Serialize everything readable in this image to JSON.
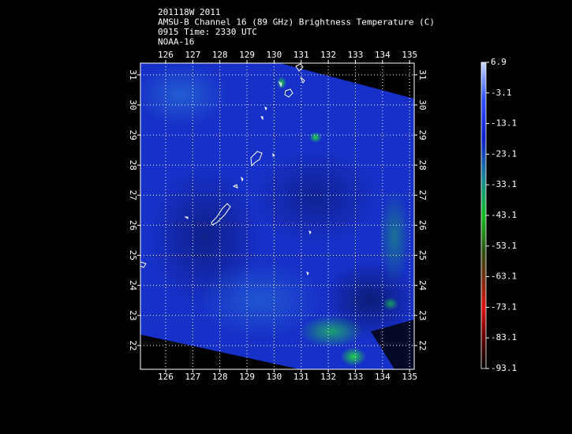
{
  "header": {
    "lines": [
      "201118W 2011",
      "AMSU-B Channel 16 (89 GHz) Brightness Temperature (C)",
      "0915 Time: 2330 UTC",
      "NOAA-16"
    ]
  },
  "map": {
    "lonlim": [
      125.07,
      135.17
    ],
    "latlim": [
      21.21,
      31.39
    ],
    "lon_ticks": [
      126,
      127,
      128,
      129,
      130,
      131,
      132,
      133,
      134,
      135
    ],
    "lat_ticks": [
      22,
      23,
      24,
      25,
      26,
      27,
      28,
      29,
      30,
      31
    ],
    "grid": true
  },
  "colorbar": {
    "lim": [
      -93.1,
      6.9
    ],
    "ticks": [
      6.9,
      -3.1,
      -13.1,
      -23.1,
      -33.1,
      -43.1,
      -53.1,
      -63.1,
      -73.1,
      -83.1,
      -93.1
    ]
  }
}
